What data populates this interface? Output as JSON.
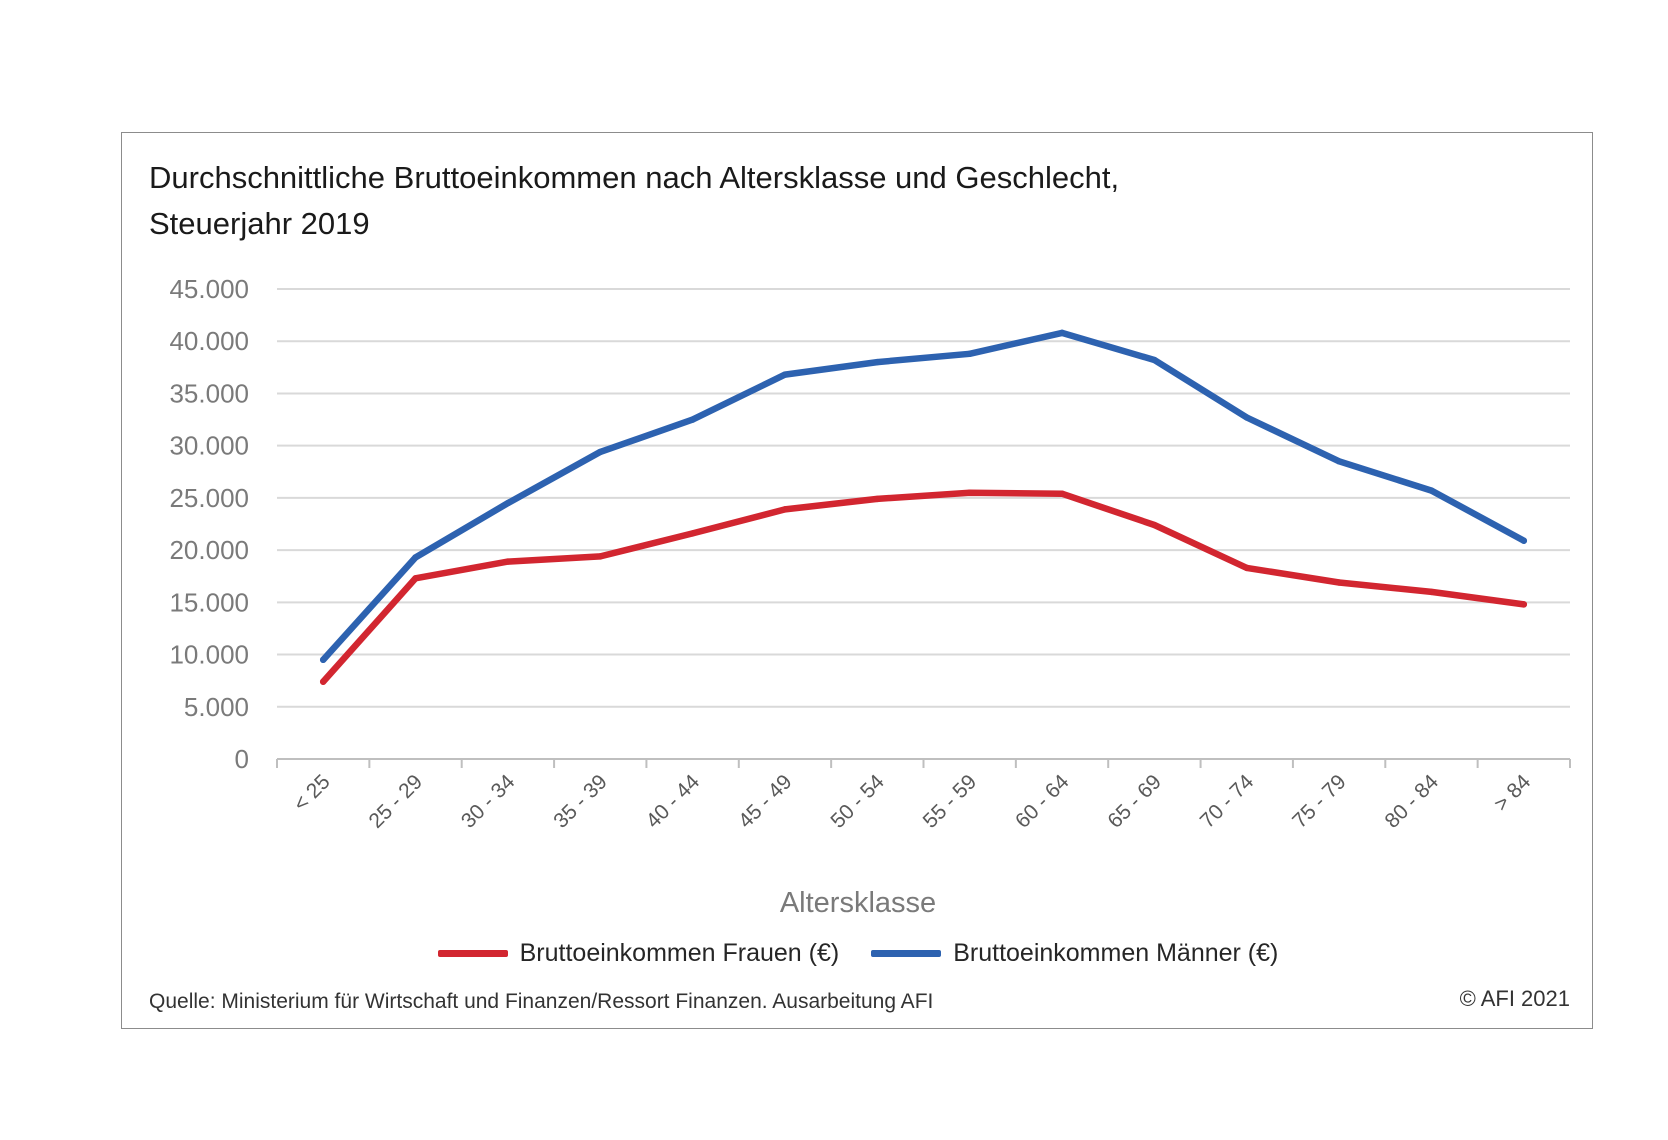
{
  "chart_data": {
    "type": "line",
    "title_lines": [
      "Durchschnittliche Bruttoeinkommen nach Altersklasse und Geschlecht,",
      "Steuerjahr 2019"
    ],
    "xlabel": "Altersklasse",
    "ylabel": "",
    "ylim": [
      0,
      45000
    ],
    "yticks": [
      0,
      5000,
      10000,
      15000,
      20000,
      25000,
      30000,
      35000,
      40000,
      45000
    ],
    "ytick_labels": [
      "0",
      "5.000",
      "10.000",
      "15.000",
      "20.000",
      "25.000",
      "30.000",
      "35.000",
      "40.000",
      "45.000"
    ],
    "categories": [
      "< 25",
      "25 - 29",
      "30 - 34",
      "35 - 39",
      "40 - 44",
      "45 - 49",
      "50 - 54",
      "55 - 59",
      "60 - 64",
      "65 - 69",
      "70 - 74",
      "75 - 79",
      "80 - 84",
      "> 84"
    ],
    "grid": true,
    "legend_position": "bottom",
    "series": [
      {
        "name": "Bruttoeinkommen Frauen (€)",
        "color": "#d22630",
        "values": [
          7400,
          17300,
          18900,
          19400,
          21600,
          23900,
          24900,
          25500,
          25400,
          22400,
          18300,
          16900,
          16000,
          14800
        ]
      },
      {
        "name": "Bruttoeinkommen Männer (€)",
        "color": "#2d62b0",
        "values": [
          9500,
          19300,
          24500,
          29400,
          32500,
          36800,
          38000,
          38800,
          40800,
          38200,
          32700,
          28500,
          25700,
          20900
        ]
      }
    ]
  },
  "footer": {
    "source": "Quelle: Ministerium für Wirtschaft und Finanzen/Ressort Finanzen. Ausarbeitung AFI",
    "copyright": "© AFI 2021"
  }
}
